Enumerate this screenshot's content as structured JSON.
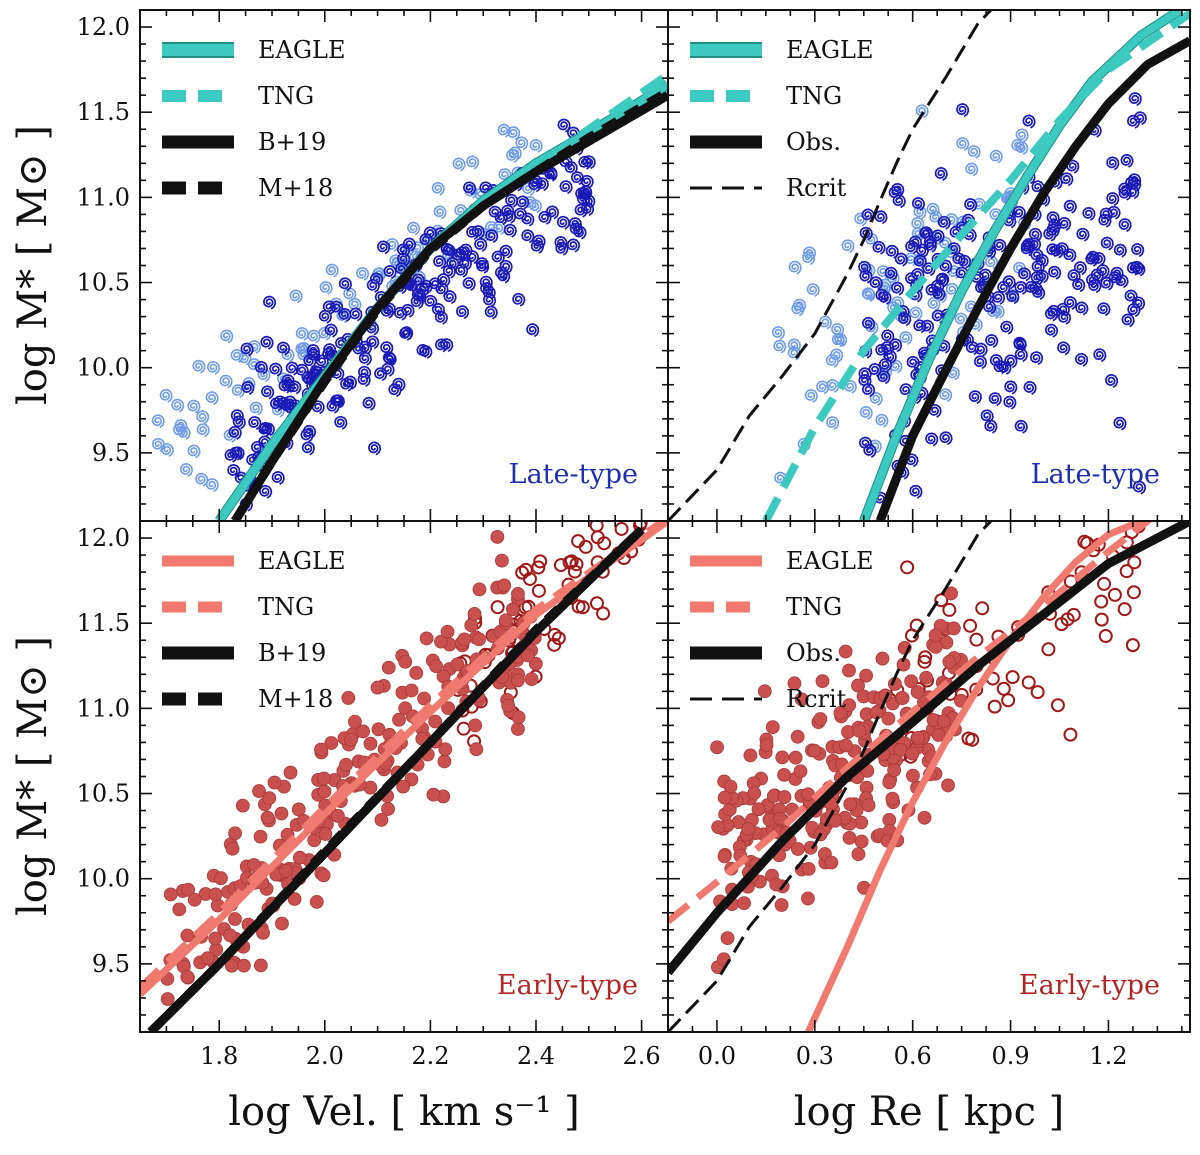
{
  "colors": {
    "eagle_late": "#3cc9bf",
    "eagle_early": "#f07a70",
    "obs": "#111111",
    "late_dark": "#1a1ab8",
    "late_light": "#6f9be8",
    "early_filled": "#c9504e",
    "early_open": "#a01818",
    "late_label": "#1f2fb0",
    "early_label": "#b32626"
  },
  "axes": {
    "ylabel": "log M* [ M⊙ ]",
    "xlabel_left": "log Vel. [ km s⁻¹ ]",
    "xlabel_right": "log Re [ kpc ]"
  },
  "chart_data": [
    {
      "id": "vel-late",
      "type": "scatter",
      "panel_label": "Late-type",
      "xlim": [
        1.65,
        2.65
      ],
      "ylim": [
        9.1,
        12.1
      ],
      "xticks": [
        "1.8",
        "2.0",
        "2.2",
        "2.4",
        "2.6"
      ],
      "yticks": [
        "9.5",
        "10.0",
        "10.5",
        "11.0",
        "11.5",
        "12.0"
      ],
      "legend": [
        "EAGLE",
        "TNG",
        "B+19",
        "M+18"
      ],
      "lines": [
        {
          "name": "EAGLE",
          "style": "teal-solid",
          "x": [
            1.8,
            1.9,
            2.0,
            2.1,
            2.2,
            2.3,
            2.4,
            2.5,
            2.65
          ],
          "y": [
            9.1,
            9.55,
            9.95,
            10.35,
            10.7,
            10.98,
            11.2,
            11.38,
            11.66
          ]
        },
        {
          "name": "TNG",
          "style": "teal-dashed",
          "x": [
            1.8,
            1.9,
            2.0,
            2.1,
            2.2,
            2.3,
            2.4,
            2.5,
            2.65
          ],
          "y": [
            9.1,
            9.55,
            9.95,
            10.35,
            10.7,
            10.97,
            11.18,
            11.4,
            11.72
          ]
        },
        {
          "name": "B+19",
          "style": "black-solid",
          "x": [
            1.83,
            1.9,
            2.0,
            2.1,
            2.2,
            2.3,
            2.4,
            2.5,
            2.65
          ],
          "y": [
            9.1,
            9.45,
            9.93,
            10.35,
            10.7,
            10.95,
            11.15,
            11.33,
            11.6
          ]
        },
        {
          "name": "M+18",
          "style": "black-dashed",
          "x": [
            1.83,
            1.9,
            2.0,
            2.1,
            2.2,
            2.3,
            2.4,
            2.5,
            2.65
          ],
          "y": [
            9.1,
            9.45,
            9.92,
            10.34,
            10.69,
            10.95,
            11.15,
            11.35,
            11.62
          ]
        }
      ],
      "scatter_model": {
        "xmin": 1.82,
        "xmax": 2.5,
        "x0": 2.05,
        "y0": 10.1,
        "slope": 2.4,
        "scatter": 0.2,
        "n_dark": 230,
        "n_light": 90,
        "light_xmin": 1.68,
        "light_xmax": 2.4,
        "light_offset": 0.3
      }
    },
    {
      "id": "re-late",
      "type": "scatter",
      "panel_label": "Late-type",
      "xlim": [
        -0.15,
        1.45
      ],
      "ylim": [
        9.1,
        12.1
      ],
      "xticks": [
        "0.0",
        "0.3",
        "0.6",
        "0.9",
        "1.2"
      ],
      "yticks": [
        "9.5",
        "10.0",
        "10.5",
        "11.0",
        "11.5",
        "12.0"
      ],
      "legend": [
        "EAGLE",
        "TNG",
        "Obs.",
        "Rcrit"
      ],
      "lines": [
        {
          "name": "EAGLE",
          "style": "teal-solid",
          "x": [
            0.45,
            0.55,
            0.65,
            0.75,
            0.85,
            0.95,
            1.05,
            1.15,
            1.3,
            1.42
          ],
          "y": [
            9.1,
            9.6,
            10.05,
            10.45,
            10.8,
            11.12,
            11.42,
            11.68,
            11.95,
            12.1
          ]
        },
        {
          "name": "TNG",
          "style": "teal-dashed",
          "x": [
            0.15,
            0.3,
            0.45,
            0.6,
            0.75,
            0.9,
            1.05,
            1.2,
            1.45
          ],
          "y": [
            9.1,
            9.65,
            10.1,
            10.45,
            10.78,
            11.1,
            11.45,
            11.75,
            12.08
          ]
        },
        {
          "name": "Obs.",
          "style": "black-solid",
          "x": [
            0.5,
            0.6,
            0.7,
            0.8,
            0.9,
            1.0,
            1.1,
            1.2,
            1.32,
            1.45
          ],
          "y": [
            9.1,
            9.6,
            9.98,
            10.35,
            10.7,
            11.02,
            11.3,
            11.55,
            11.78,
            11.92
          ]
        },
        {
          "name": "Rcrit",
          "style": "black-thin-dashed",
          "x": [
            -0.15,
            0.0,
            0.1,
            0.2,
            0.3,
            0.4,
            0.45,
            0.5,
            0.55,
            0.6,
            0.7,
            0.8,
            0.84
          ],
          "y": [
            9.1,
            9.4,
            9.72,
            9.95,
            10.2,
            10.55,
            10.75,
            10.98,
            11.2,
            11.4,
            11.7,
            12.02,
            12.1
          ]
        }
      ],
      "scatter_model": {
        "xmin": 0.45,
        "xmax": 1.3,
        "x0": 0.8,
        "y0": 10.45,
        "slope": 0.9,
        "scatter": 0.45,
        "n_dark": 230,
        "n_light": 90,
        "light_xmin": 0.15,
        "light_xmax": 0.95,
        "light_offset": 0.25
      }
    },
    {
      "id": "vel-early",
      "type": "scatter",
      "panel_label": "Early-type",
      "xlim": [
        1.65,
        2.65
      ],
      "ylim": [
        9.1,
        12.1
      ],
      "xticks": [
        "1.8",
        "2.0",
        "2.2",
        "2.4",
        "2.6"
      ],
      "yticks": [
        "9.5",
        "10.0",
        "10.5",
        "11.0",
        "11.5",
        "12.0"
      ],
      "legend": [
        "EAGLE",
        "TNG",
        "B+19",
        "M+18"
      ],
      "lines": [
        {
          "name": "EAGLE",
          "style": "coral-solid",
          "x": [
            1.65,
            1.8,
            2.0,
            2.2,
            2.4,
            2.65
          ],
          "y": [
            9.32,
            9.76,
            10.38,
            10.98,
            11.55,
            12.1
          ]
        },
        {
          "name": "TNG",
          "style": "coral-dashed",
          "x": [
            1.65,
            1.8,
            2.0,
            2.2,
            2.4,
            2.65
          ],
          "y": [
            9.36,
            9.8,
            10.42,
            11.02,
            11.58,
            12.12
          ]
        },
        {
          "name": "B+19",
          "style": "black-solid",
          "x": [
            1.67,
            1.8,
            2.0,
            2.2,
            2.4,
            2.6
          ],
          "y": [
            9.1,
            9.5,
            10.15,
            10.8,
            11.45,
            12.05
          ]
        },
        {
          "name": "M+18",
          "style": "black-dashed",
          "x": [
            1.67,
            1.8,
            2.0,
            2.2,
            2.4,
            2.6
          ],
          "y": [
            9.1,
            9.5,
            10.16,
            10.8,
            11.46,
            12.05
          ]
        }
      ],
      "scatter_model": {
        "xmin": 1.7,
        "xmax": 2.4,
        "x0": 2.05,
        "y0": 10.55,
        "slope": 2.9,
        "scatter": 0.25,
        "n_dark": 240,
        "n_light": 70,
        "light_xmin": 2.25,
        "light_xmax": 2.6,
        "light_offset": 0.0
      }
    },
    {
      "id": "re-early",
      "type": "scatter",
      "panel_label": "Early-type",
      "xlim": [
        -0.15,
        1.45
      ],
      "ylim": [
        9.1,
        12.1
      ],
      "xticks": [
        "0.0",
        "0.3",
        "0.6",
        "0.9",
        "1.2"
      ],
      "yticks": [
        "9.5",
        "10.0",
        "10.5",
        "11.0",
        "11.5",
        "12.0"
      ],
      "legend": [
        "EAGLE",
        "TNG",
        "Obs.",
        "Rcrit"
      ],
      "lines": [
        {
          "name": "EAGLE",
          "style": "coral-solid",
          "x": [
            0.28,
            0.4,
            0.5,
            0.6,
            0.7,
            0.8,
            0.9,
            1.0,
            1.1,
            1.2,
            1.3
          ],
          "y": [
            9.1,
            9.6,
            10.05,
            10.45,
            10.8,
            11.12,
            11.4,
            11.65,
            11.86,
            12.02,
            12.1
          ]
        },
        {
          "name": "TNG",
          "style": "coral-dashed",
          "x": [
            -0.15,
            0.0,
            0.2,
            0.4,
            0.6,
            0.8,
            1.0,
            1.2,
            1.4
          ],
          "y": [
            9.75,
            9.98,
            10.3,
            10.65,
            10.98,
            11.3,
            11.6,
            11.92,
            12.22
          ]
        },
        {
          "name": "Obs.",
          "style": "black-solid",
          "x": [
            -0.15,
            0.0,
            0.2,
            0.4,
            0.6,
            0.8,
            1.0,
            1.2,
            1.45
          ],
          "y": [
            9.45,
            9.8,
            10.22,
            10.6,
            10.92,
            11.25,
            11.55,
            11.85,
            12.1
          ]
        },
        {
          "name": "Rcrit",
          "style": "black-thin-dashed",
          "x": [
            -0.15,
            0.0,
            0.1,
            0.2,
            0.3,
            0.4,
            0.45,
            0.5,
            0.55,
            0.6,
            0.7,
            0.8,
            0.84
          ],
          "y": [
            9.1,
            9.4,
            9.72,
            9.95,
            10.2,
            10.55,
            10.75,
            10.98,
            11.2,
            11.4,
            11.7,
            12.02,
            12.1
          ]
        }
      ],
      "scatter_model": {
        "xmin": 0.0,
        "xmax": 0.75,
        "x0": 0.35,
        "y0": 10.6,
        "slope": 1.0,
        "scatter": 0.32,
        "n_dark": 240,
        "n_light": 70,
        "light_xmin": 0.55,
        "light_xmax": 1.3,
        "light_offset": 0.25
      }
    }
  ]
}
